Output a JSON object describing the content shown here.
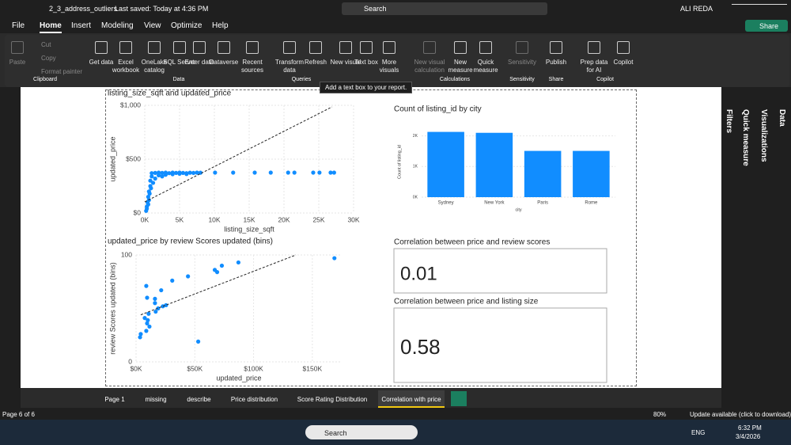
{
  "titlebar": {
    "file": "2_3_address_outliers",
    "saved": "Last saved: Today at 4:36 PM",
    "search": "Search",
    "user": "ALI REDA"
  },
  "menu": [
    "File",
    "Home",
    "Insert",
    "Modeling",
    "View",
    "Optimize",
    "Help"
  ],
  "share": "Share",
  "ribbon": {
    "buttons": [
      "Paste",
      "Get data",
      "Excel workbook",
      "OneLake catalog",
      "SQL Server",
      "Enter data",
      "Dataverse",
      "Recent sources",
      "Transform data",
      "Refresh",
      "New visual",
      "Text box",
      "More visuals",
      "New visual calculation",
      "New measure",
      "Quick measure",
      "Sensitivity",
      "Publish",
      "Prep data for AI",
      "Copilot"
    ],
    "small": [
      "Cut",
      "Copy",
      "Format painter"
    ],
    "groups": [
      "Clipboard",
      "Data",
      "Queries",
      "Calculations",
      "Sensitivity",
      "Share",
      "Copilot"
    ]
  },
  "tooltip": "Add a text box to your report.",
  "panes": [
    "Filters",
    "Quick measure",
    "Visualizations",
    "Data"
  ],
  "visuals": [
    {
      "type": "scatter",
      "title": "listing_size_sqft and updated_price",
      "x_label": "listing_size_sqft",
      "y_label": "updated_price",
      "color": "#118dff",
      "grid": true,
      "xlim": [
        0,
        30000
      ],
      "ylim": [
        0,
        1000
      ],
      "xticks": [
        {
          "value": 0,
          "label": "0K"
        },
        {
          "value": 5000,
          "label": "5K"
        },
        {
          "value": 10000,
          "label": "10K"
        },
        {
          "value": 15000,
          "label": "15K"
        },
        {
          "value": 20000,
          "label": "20K"
        },
        {
          "value": 25000,
          "label": "25K"
        },
        {
          "value": 30000,
          "label": "30K"
        }
      ],
      "yticks": [
        {
          "value": 0,
          "label": "$0"
        },
        {
          "value": 500,
          "label": "$500"
        },
        {
          "value": 1000,
          "label": "$1,000"
        }
      ],
      "x": [
        1000,
        1500,
        2000,
        2500,
        3000,
        3500,
        4000,
        4500,
        5000,
        5500,
        6000,
        6500,
        7000,
        7500,
        8000,
        1000,
        2000,
        3000,
        4000,
        5000,
        6000,
        800,
        1500,
        2500,
        800,
        1200,
        600,
        900,
        500,
        700,
        400,
        600,
        300,
        500,
        200,
        300,
        10100,
        12700,
        15800,
        18100,
        20600,
        21500,
        24200,
        25100,
        26700,
        27200
      ],
      "y": [
        370,
        372,
        375,
        372,
        375,
        370,
        375,
        372,
        375,
        372,
        370,
        374,
        372,
        375,
        374,
        340,
        350,
        355,
        360,
        365,
        362,
        300,
        320,
        340,
        250,
        280,
        200,
        230,
        150,
        180,
        100,
        120,
        60,
        80,
        20,
        40,
        375,
        375,
        375,
        375,
        375,
        375,
        375,
        375,
        375,
        375
      ],
      "trendline": {
        "x": [
          0,
          26900
        ],
        "y": [
          103,
          985
        ]
      }
    },
    {
      "type": "bar",
      "title": "Count of listing_id by city",
      "x_label": "city",
      "y_label": "Count of listing_id",
      "color": "#118dff",
      "grid": true,
      "categories": [
        "Sydney",
        "New York",
        "Paris",
        "Rome"
      ],
      "values": [
        2130,
        2100,
        1510,
        1510
      ],
      "ylim": [
        0,
        2300
      ],
      "yticks": [
        {
          "value": 0,
          "label": "0K"
        },
        {
          "value": 1000,
          "label": "1K"
        },
        {
          "value": 2000,
          "label": "2K"
        }
      ]
    },
    {
      "type": "scatter",
      "title": "updated_price by review Scores updated (bins)",
      "x_label": "updated_price",
      "y_label": "review Scores updated (bins)",
      "color": "#118dff",
      "grid": true,
      "xlim": [
        0,
        175000
      ],
      "ylim": [
        0,
        100
      ],
      "xticks": [
        {
          "value": 0,
          "label": "$0K"
        },
        {
          "value": 50000,
          "label": "$50K"
        },
        {
          "value": 100000,
          "label": "$100K"
        },
        {
          "value": 150000,
          "label": "$150K"
        }
      ],
      "yticks": [
        0,
        100
      ],
      "x": [
        168800,
        87100,
        73000,
        67000,
        69000,
        44200,
        30800,
        8700,
        21400,
        9400,
        16100,
        16100,
        22800,
        10700,
        7400,
        10000,
        16700,
        18800,
        25500,
        9400,
        11400,
        8700,
        4000,
        3400,
        52900
      ],
      "y": [
        97,
        93,
        90,
        86,
        84,
        80,
        76,
        71,
        67,
        60,
        59,
        55,
        52,
        45,
        41,
        39,
        47,
        50,
        53,
        36,
        33,
        29,
        26,
        23,
        19
      ],
      "trendline": {
        "x": [
          4000,
          136000
        ],
        "y": [
          44,
          100
        ]
      }
    },
    {
      "type": "card",
      "title": "Correlation between price and review scores",
      "value": "0.01"
    },
    {
      "type": "card",
      "title": "Correlation between price and listing size",
      "value": "0.58"
    }
  ],
  "tabs": [
    "Page 1",
    "missing",
    "describe",
    "Price distribution",
    "Score Rating Distribution",
    "Correlation with price"
  ],
  "status": {
    "page": "Page 6 of 6",
    "zoom": "80%",
    "update": "Update available (click to download)"
  },
  "taskbar": {
    "search": "Search",
    "lang": "ENG",
    "time": "6:32 PM",
    "date": "3/4/2026"
  }
}
